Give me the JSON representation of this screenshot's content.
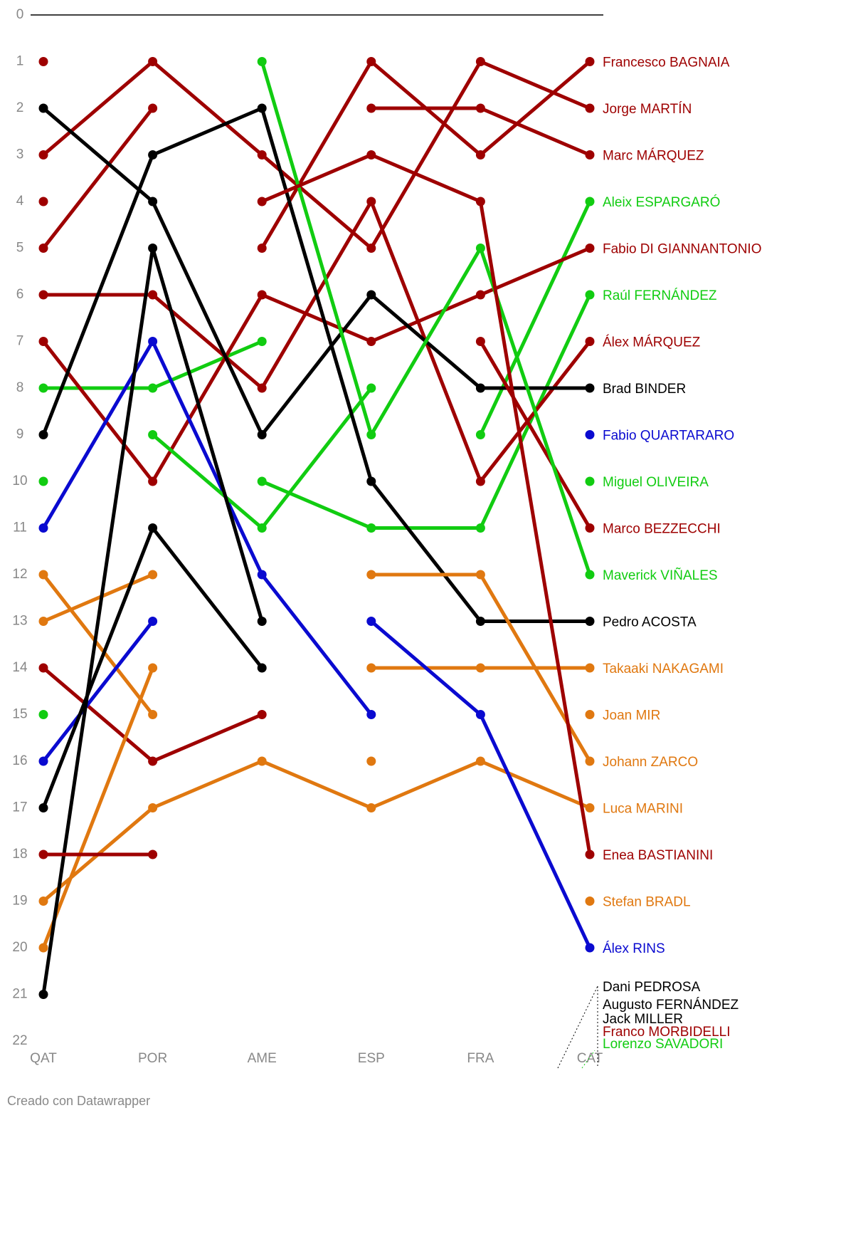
{
  "chart_data": {
    "type": "bump",
    "categories": [
      "QAT",
      "POR",
      "AME",
      "ESP",
      "FRA",
      "CAT"
    ],
    "ylim": [
      0,
      22
    ],
    "y_reversed": true,
    "yticks": [
      0,
      1,
      2,
      3,
      4,
      5,
      6,
      7,
      8,
      9,
      10,
      11,
      12,
      13,
      14,
      15,
      16,
      17,
      18,
      19,
      20,
      21,
      22
    ],
    "series": [
      {
        "name": "Francesco BAGNAIA",
        "color": "#9e0000",
        "values": [
          1,
          null,
          5,
          1,
          3,
          1
        ]
      },
      {
        "name": "Jorge MARTÍN",
        "color": "#9e0000",
        "values": [
          3,
          1,
          3,
          5,
          1,
          2
        ]
      },
      {
        "name": "Marc MÁRQUEZ",
        "color": "#9e0000",
        "values": [
          5,
          2,
          null,
          2,
          2,
          3
        ]
      },
      {
        "name": "Aleix ESPARGARÓ",
        "color": "#11cc11",
        "values": [
          8,
          8,
          7,
          null,
          9,
          4
        ]
      },
      {
        "name": "Fabio DI GIANNANTONIO",
        "color": "#9e0000",
        "values": [
          7,
          10,
          6,
          7,
          6,
          5
        ]
      },
      {
        "name": "Raúl FERNÁNDEZ",
        "color": "#11cc11",
        "values": [
          10,
          null,
          10,
          11,
          11,
          6
        ]
      },
      {
        "name": "Álex MÁRQUEZ",
        "color": "#9e0000",
        "values": [
          6,
          6,
          8,
          4,
          10,
          7
        ]
      },
      {
        "name": "Brad BINDER",
        "color": "#000000",
        "values": [
          2,
          4,
          9,
          6,
          8,
          8
        ]
      },
      {
        "name": "Fabio QUARTARARO",
        "color": "#0a0ad0",
        "values": [
          11,
          7,
          12,
          15,
          null,
          9
        ]
      },
      {
        "name": "Miguel OLIVEIRA",
        "color": "#11cc11",
        "values": [
          null,
          9,
          11,
          8,
          null,
          10
        ]
      },
      {
        "name": "Marco BEZZECCHI",
        "color": "#9e0000",
        "values": [
          14,
          16,
          15,
          null,
          7,
          11
        ]
      },
      {
        "name": "Maverick VIÑALES",
        "color": "#11cc11",
        "values": [
          15,
          null,
          1,
          9,
          5,
          12
        ]
      },
      {
        "name": "Pedro ACOSTA",
        "color": "#000000",
        "values": [
          9,
          3,
          2,
          10,
          13,
          13
        ]
      },
      {
        "name": "Takaaki NAKAGAMI",
        "color": "#e07810",
        "values": [
          13,
          12,
          null,
          14,
          14,
          14
        ]
      },
      {
        "name": "Joan MIR",
        "color": "#e07810",
        "values": [
          20,
          14,
          null,
          16,
          null,
          15
        ]
      },
      {
        "name": "Johann ZARCO",
        "color": "#e07810",
        "values": [
          12,
          15,
          null,
          12,
          12,
          16
        ]
      },
      {
        "name": "Luca MARINI",
        "color": "#e07810",
        "values": [
          19,
          17,
          16,
          17,
          16,
          17
        ]
      },
      {
        "name": "Enea BASTIANINI",
        "color": "#9e0000",
        "values": [
          4,
          null,
          4,
          3,
          4,
          18
        ]
      },
      {
        "name": "Stefan BRADL",
        "color": "#e07810",
        "values": [
          null,
          null,
          null,
          null,
          null,
          19
        ]
      },
      {
        "name": "Álex RINS",
        "color": "#0a0ad0",
        "values": [
          16,
          13,
          null,
          13,
          15,
          20
        ]
      },
      {
        "name": "Dani PEDROSA",
        "color": "#000000",
        "values": [
          null,
          null,
          null,
          null,
          null,
          null
        ]
      },
      {
        "name": "Augusto FERNÁNDEZ",
        "color": "#000000",
        "values": [
          21,
          5,
          13,
          null,
          null,
          null
        ]
      },
      {
        "name": "Jack MILLER",
        "color": "#000000",
        "values": [
          17,
          11,
          14,
          null,
          null,
          null
        ]
      },
      {
        "name": "Franco MORBIDELLI",
        "color": "#9e0000",
        "values": [
          18,
          18,
          null,
          null,
          null,
          null
        ]
      },
      {
        "name": "Lorenzo SAVADORI",
        "color": "#11cc11",
        "values": [
          null,
          null,
          null,
          null,
          null,
          null
        ]
      }
    ],
    "footer": "Creado con Datawrapper"
  }
}
